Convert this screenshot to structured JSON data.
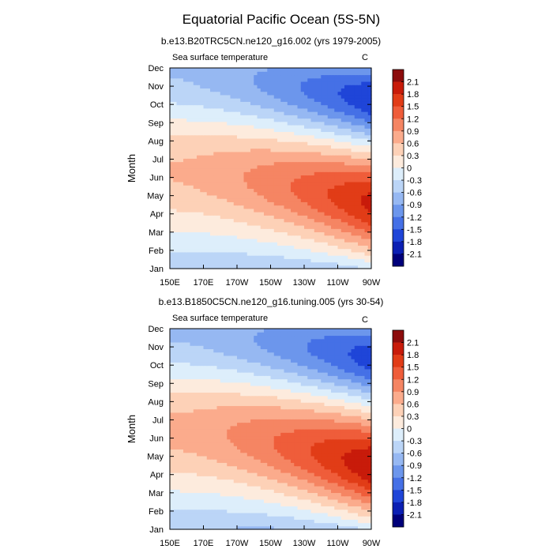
{
  "title": "Equatorial Pacific Ocean (5S-5N)",
  "chart_data": [
    {
      "type": "heatmap",
      "title": "b.e13.B20TRC5CN.ne120_g16.002 (yrs 1979-2005)",
      "left_label": "Sea surface temperature",
      "right_label": "C",
      "xlabel": "",
      "ylabel": "Month",
      "x_ticks": [
        "150E",
        "170E",
        "170W",
        "150W",
        "130W",
        "110W",
        "90W"
      ],
      "x_range_deg_east": [
        150,
        270
      ],
      "y_ticks": [
        "Jan",
        "Feb",
        "Mar",
        "Apr",
        "May",
        "Jun",
        "Jul",
        "Aug",
        "Sep",
        "Oct",
        "Nov",
        "Dec"
      ],
      "colorbar_levels": [
        "2.1",
        "1.8",
        "1.5",
        "1.2",
        "0.9",
        "0.6",
        "0.3",
        "0",
        "-0.3",
        "-0.6",
        "-0.9",
        "-1.2",
        "-1.5",
        "-1.8",
        "-2.1"
      ],
      "colorbar_colors": [
        "#8c0c0c",
        "#c81b0a",
        "#e13c17",
        "#ef5d3a",
        "#f58563",
        "#fbab8c",
        "#fdd1b7",
        "#fdebdd",
        "#ddeefb",
        "#bbd5f7",
        "#96b8f2",
        "#6c96ec",
        "#4570e6",
        "#1f45d8",
        "#0b1fb3",
        "#00007a"
      ],
      "field": {
        "annual_amp": 0.35,
        "warm_amp": 1.9,
        "cold_amp": 1.8,
        "warm_peak_month": 3.6,
        "warm_phase_slope": 2.2,
        "cold_peak_month": 9.4,
        "cold_phase_slope": 1.5
      }
    },
    {
      "type": "heatmap",
      "title": "b.e13.B1850C5CN.ne120_g16.tuning.005 (yrs 30-54)",
      "left_label": "Sea surface temperature",
      "right_label": "C",
      "xlabel": "",
      "ylabel": "Month",
      "x_ticks": [
        "150E",
        "170E",
        "170W",
        "150W",
        "130W",
        "110W",
        "90W"
      ],
      "x_range_deg_east": [
        150,
        270
      ],
      "y_ticks": [
        "Jan",
        "Feb",
        "Mar",
        "Apr",
        "May",
        "Jun",
        "Jul",
        "Aug",
        "Sep",
        "Oct",
        "Nov",
        "Dec"
      ],
      "colorbar_levels": [
        "2.1",
        "1.8",
        "1.5",
        "1.2",
        "0.9",
        "0.6",
        "0.3",
        "0",
        "-0.3",
        "-0.6",
        "-0.9",
        "-1.2",
        "-1.5",
        "-1.8",
        "-2.1"
      ],
      "colorbar_colors": [
        "#8c0c0c",
        "#c81b0a",
        "#e13c17",
        "#ef5d3a",
        "#f58563",
        "#fbab8c",
        "#fdd1b7",
        "#fdebdd",
        "#ddeefb",
        "#bbd5f7",
        "#96b8f2",
        "#6c96ec",
        "#4570e6",
        "#1f45d8",
        "#0b1fb3",
        "#00007a"
      ],
      "field": {
        "annual_amp": 0.4,
        "warm_amp": 2.1,
        "cold_amp": 1.7,
        "warm_peak_month": 3.5,
        "warm_phase_slope": 2.5,
        "cold_peak_month": 9.5,
        "cold_phase_slope": 1.6
      }
    }
  ]
}
